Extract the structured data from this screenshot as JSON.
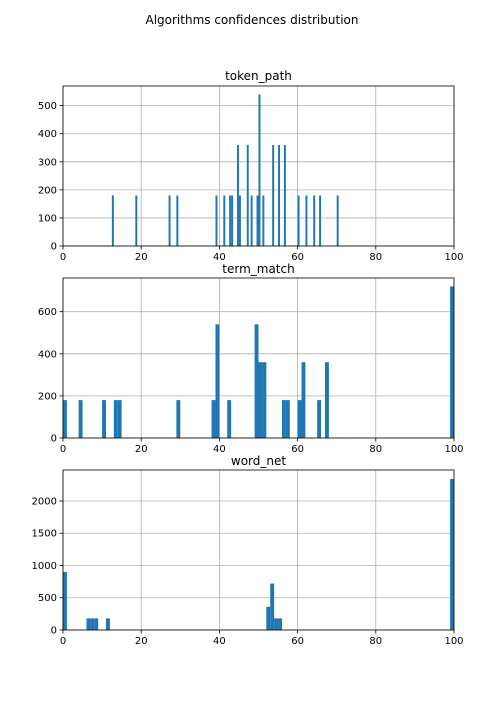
{
  "figure": {
    "title": "Algorithms confidences distribution"
  },
  "chart_data": [
    {
      "type": "bar",
      "title": "token_path",
      "xlabel": "",
      "ylabel": "",
      "xlim": [
        0,
        100
      ],
      "ylim": [
        0,
        570
      ],
      "xticks": [
        0,
        20,
        40,
        60,
        80,
        100
      ],
      "yticks": [
        0,
        100,
        200,
        300,
        400,
        500
      ],
      "grid": true,
      "color": "#1f77b4",
      "bin_width": 0.5,
      "bars": [
        {
          "x": 12.5,
          "y": 180
        },
        {
          "x": 18.5,
          "y": 180
        },
        {
          "x": 27.0,
          "y": 180
        },
        {
          "x": 29.0,
          "y": 180
        },
        {
          "x": 39.0,
          "y": 180
        },
        {
          "x": 41.0,
          "y": 180
        },
        {
          "x": 42.5,
          "y": 180
        },
        {
          "x": 43.0,
          "y": 180
        },
        {
          "x": 44.5,
          "y": 360
        },
        {
          "x": 45.0,
          "y": 180
        },
        {
          "x": 47.0,
          "y": 360
        },
        {
          "x": 48.0,
          "y": 180
        },
        {
          "x": 49.5,
          "y": 180
        },
        {
          "x": 50.0,
          "y": 540
        },
        {
          "x": 51.0,
          "y": 180
        },
        {
          "x": 53.5,
          "y": 360
        },
        {
          "x": 55.0,
          "y": 360
        },
        {
          "x": 56.5,
          "y": 360
        },
        {
          "x": 60.0,
          "y": 180
        },
        {
          "x": 62.0,
          "y": 180
        },
        {
          "x": 64.0,
          "y": 180
        },
        {
          "x": 65.5,
          "y": 180
        },
        {
          "x": 70.0,
          "y": 180
        }
      ]
    },
    {
      "type": "bar",
      "title": "term_match",
      "xlabel": "",
      "ylabel": "",
      "xlim": [
        0,
        100
      ],
      "ylim": [
        0,
        760
      ],
      "xticks": [
        0,
        20,
        40,
        60,
        80,
        100
      ],
      "yticks": [
        0,
        200,
        400,
        600
      ],
      "grid": true,
      "color": "#1f77b4",
      "bin_width": 1,
      "bars": [
        {
          "x": 0,
          "y": 180
        },
        {
          "x": 4,
          "y": 180
        },
        {
          "x": 10,
          "y": 180
        },
        {
          "x": 13,
          "y": 180
        },
        {
          "x": 14,
          "y": 180
        },
        {
          "x": 29,
          "y": 180
        },
        {
          "x": 38,
          "y": 180
        },
        {
          "x": 39,
          "y": 540
        },
        {
          "x": 42,
          "y": 180
        },
        {
          "x": 49,
          "y": 540
        },
        {
          "x": 50,
          "y": 360
        },
        {
          "x": 51,
          "y": 360
        },
        {
          "x": 56,
          "y": 180
        },
        {
          "x": 57,
          "y": 180
        },
        {
          "x": 60,
          "y": 180
        },
        {
          "x": 61,
          "y": 360
        },
        {
          "x": 65,
          "y": 180
        },
        {
          "x": 67,
          "y": 360
        },
        {
          "x": 99,
          "y": 720
        }
      ]
    },
    {
      "type": "bar",
      "title": "word_net",
      "xlabel": "",
      "ylabel": "",
      "xlim": [
        0,
        100
      ],
      "ylim": [
        0,
        2480
      ],
      "xticks": [
        0,
        20,
        40,
        60,
        80,
        100
      ],
      "yticks": [
        0,
        500,
        1000,
        1500,
        2000
      ],
      "grid": true,
      "color": "#1f77b4",
      "bin_width": 1,
      "bars": [
        {
          "x": 0,
          "y": 900
        },
        {
          "x": 6,
          "y": 180
        },
        {
          "x": 7,
          "y": 180
        },
        {
          "x": 8,
          "y": 180
        },
        {
          "x": 11,
          "y": 180
        },
        {
          "x": 52,
          "y": 360
        },
        {
          "x": 53,
          "y": 720
        },
        {
          "x": 54,
          "y": 180
        },
        {
          "x": 55,
          "y": 180
        },
        {
          "x": 99,
          "y": 2340
        }
      ]
    }
  ]
}
